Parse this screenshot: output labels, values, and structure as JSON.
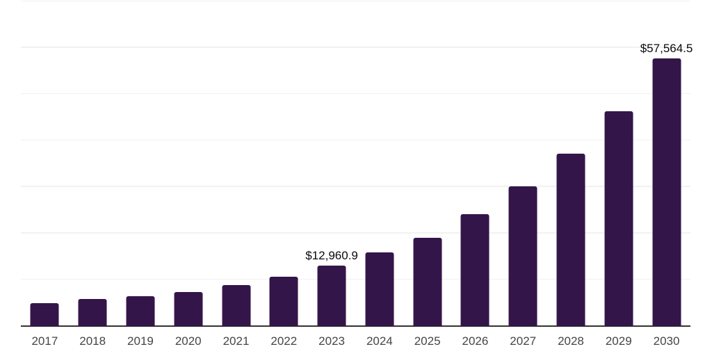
{
  "chart_data": {
    "type": "bar",
    "title": "",
    "xlabel": "",
    "ylabel": "",
    "categories": [
      "2017",
      "2018",
      "2019",
      "2020",
      "2021",
      "2022",
      "2023",
      "2024",
      "2025",
      "2026",
      "2027",
      "2028",
      "2029",
      "2030"
    ],
    "values": [
      4750,
      5750,
      6350,
      7250,
      8700,
      10450,
      12960.9,
      15700,
      18950,
      24000,
      30050,
      37100,
      46100,
      57564.5
    ],
    "data_labels": {
      "2023": "$12,960.9",
      "2030": "$57,564.5"
    },
    "ylim": [
      0,
      70000
    ],
    "gridline_values": [
      10000,
      20000,
      30000,
      40000,
      50000,
      60000,
      70000
    ],
    "grid": true,
    "legend_position": "none",
    "y_tick_labels_visible": false
  },
  "colors": {
    "bar": "#341549",
    "axis_line": "#333333",
    "gridline": "#f1f1f1",
    "x_tick_label": "#454545",
    "data_label": "#0a0a0a",
    "background": "#ffffff"
  }
}
